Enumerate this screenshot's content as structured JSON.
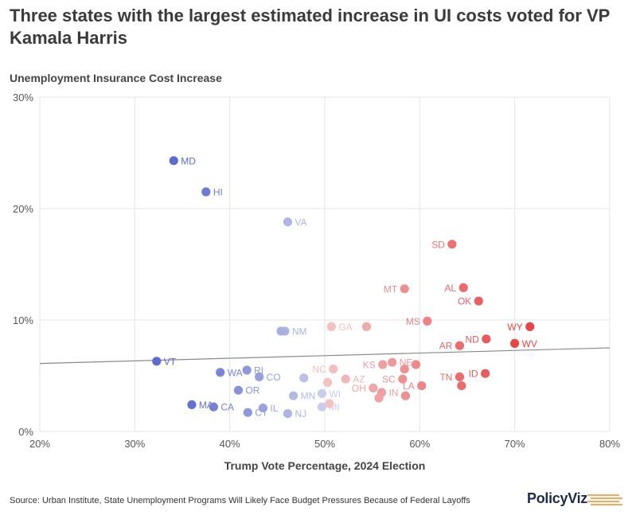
{
  "chart_data": {
    "type": "scatter",
    "title": "Three states with the largest estimated increase in UI costs voted for VP Kamala Harris",
    "ylabel": "Unemployment Insurance Cost Increase",
    "xlabel": "Trump Vote Percentage, 2024 Election",
    "xlim": [
      20,
      80
    ],
    "ylim": [
      0,
      30
    ],
    "x_ticks": [
      "20%",
      "30%",
      "40%",
      "50%",
      "60%",
      "70%",
      "80%"
    ],
    "y_ticks": [
      "0%",
      "10%",
      "20%",
      "30%"
    ],
    "trendline": {
      "start": [
        20,
        6.1
      ],
      "end": [
        80,
        7.5
      ]
    },
    "points": [
      {
        "state": "MD",
        "x": 34.1,
        "y": 24.3,
        "labeled": true
      },
      {
        "state": "HI",
        "x": 37.5,
        "y": 21.5,
        "labeled": true
      },
      {
        "state": "VA",
        "x": 46.1,
        "y": 18.8,
        "labeled": true
      },
      {
        "state": "VT",
        "x": 32.3,
        "y": 6.3,
        "labeled": true
      },
      {
        "state": "WA",
        "x": 39.0,
        "y": 5.3,
        "labeled": true
      },
      {
        "state": "MA",
        "x": 36.0,
        "y": 2.4,
        "labeled": true
      },
      {
        "state": "CA",
        "x": 38.3,
        "y": 2.2,
        "labeled": true
      },
      {
        "state": "NM",
        "x": 45.8,
        "y": 9.0,
        "labeled": true
      },
      {
        "state": "",
        "x": 45.4,
        "y": 9.0,
        "labeled": false
      },
      {
        "state": "RI",
        "x": 41.8,
        "y": 5.5,
        "labeled": true
      },
      {
        "state": "CO",
        "x": 43.1,
        "y": 4.9,
        "labeled": true
      },
      {
        "state": "OR",
        "x": 40.9,
        "y": 3.7,
        "labeled": true
      },
      {
        "state": "IL",
        "x": 43.5,
        "y": 2.1,
        "labeled": true
      },
      {
        "state": "CT",
        "x": 41.9,
        "y": 1.7,
        "labeled": true
      },
      {
        "state": "NJ",
        "x": 46.1,
        "y": 1.6,
        "labeled": true
      },
      {
        "state": "MN",
        "x": 46.7,
        "y": 3.2,
        "labeled": true
      },
      {
        "state": "WI",
        "x": 49.7,
        "y": 3.4,
        "labeled": true
      },
      {
        "state": "MI",
        "x": 49.7,
        "y": 2.2,
        "labeled": true
      },
      {
        "state": "",
        "x": 47.8,
        "y": 4.8,
        "labeled": false
      },
      {
        "state": "NC",
        "x": 50.9,
        "y": 5.6,
        "labeled": true
      },
      {
        "state": "AZ",
        "x": 52.2,
        "y": 4.7,
        "labeled": true
      },
      {
        "state": "",
        "x": 50.3,
        "y": 4.4,
        "labeled": false
      },
      {
        "state": "",
        "x": 50.5,
        "y": 2.5,
        "labeled": false
      },
      {
        "state": "GA",
        "x": 50.7,
        "y": 9.4,
        "labeled": true
      },
      {
        "state": "",
        "x": 54.4,
        "y": 9.4,
        "labeled": false
      },
      {
        "state": "OH",
        "x": 55.1,
        "y": 3.9,
        "labeled": true
      },
      {
        "state": "IN",
        "x": 56.0,
        "y": 3.5,
        "labeled": true
      },
      {
        "state": "",
        "x": 55.7,
        "y": 3.0,
        "labeled": false
      },
      {
        "state": "KS",
        "x": 56.1,
        "y": 6.0,
        "labeled": true
      },
      {
        "state": "NE",
        "x": 57.1,
        "y": 6.2,
        "labeled": true
      },
      {
        "state": "",
        "x": 58.4,
        "y": 5.6,
        "labeled": false
      },
      {
        "state": "",
        "x": 59.6,
        "y": 6.0,
        "labeled": false
      },
      {
        "state": "SC",
        "x": 58.2,
        "y": 4.7,
        "labeled": true
      },
      {
        "state": "",
        "x": 58.5,
        "y": 3.2,
        "labeled": false
      },
      {
        "state": "MT",
        "x": 58.4,
        "y": 12.8,
        "labeled": true
      },
      {
        "state": "LA",
        "x": 60.2,
        "y": 4.1,
        "labeled": true
      },
      {
        "state": "MS",
        "x": 60.8,
        "y": 9.9,
        "labeled": true
      },
      {
        "state": "SD",
        "x": 63.4,
        "y": 16.8,
        "labeled": true
      },
      {
        "state": "AL",
        "x": 64.6,
        "y": 12.9,
        "labeled": true
      },
      {
        "state": "OK",
        "x": 66.2,
        "y": 11.7,
        "labeled": true
      },
      {
        "state": "AR",
        "x": 64.2,
        "y": 7.7,
        "labeled": true
      },
      {
        "state": "ND",
        "x": 67.0,
        "y": 8.3,
        "labeled": true
      },
      {
        "state": "WV",
        "x": 70.0,
        "y": 7.9,
        "labeled": true
      },
      {
        "state": "WY",
        "x": 71.6,
        "y": 9.4,
        "labeled": true
      },
      {
        "state": "TN",
        "x": 64.2,
        "y": 4.9,
        "labeled": true
      },
      {
        "state": "ID",
        "x": 66.9,
        "y": 5.2,
        "labeled": true
      },
      {
        "state": "",
        "x": 64.4,
        "y": 4.1,
        "labeled": false
      }
    ]
  },
  "source": "Source: Urban Institute, State Unemployment Programs Will Likely Face Budget Pressures Because of Federal Layoffs",
  "brand": "PolicyViz",
  "colors": {
    "blue": "#5b6bd0",
    "red": "#e8474a",
    "grid": "#e6e6e6",
    "trend": "#8a8a8a",
    "logo_orange": "#f28c28"
  }
}
